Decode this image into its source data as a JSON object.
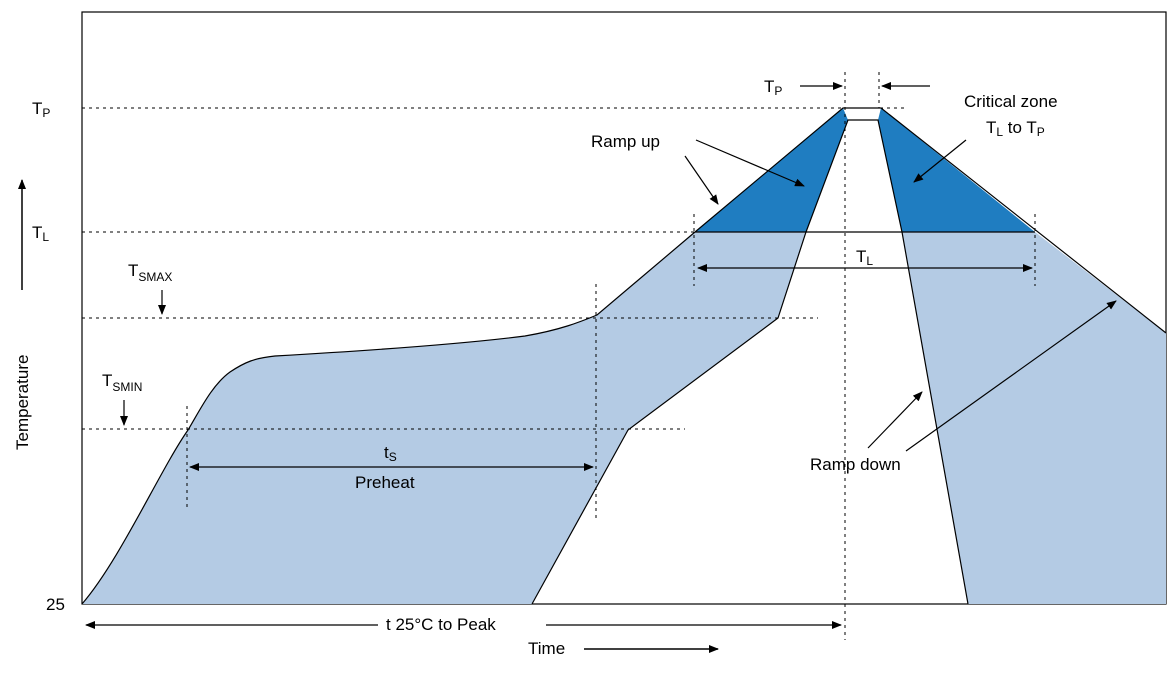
{
  "colors": {
    "light_zone": "#b4cbe4",
    "critical_zone": "#1f7dc1",
    "outline": "#000000"
  },
  "axes": {
    "y_label": "Temperature",
    "x_label": "Time",
    "y_origin_label": "25"
  },
  "levels": {
    "tp": {
      "main": "T",
      "sub": "P"
    },
    "tl": {
      "main": "T",
      "sub": "L"
    },
    "tsmax": {
      "main": "T",
      "sub": "SMAX"
    },
    "tsmin": {
      "main": "T",
      "sub": "SMIN"
    }
  },
  "annotations": {
    "tp_time": {
      "main": "T",
      "sub": "P"
    },
    "critical_zone_line1": "Critical zone",
    "critical_zone_line2": {
      "t1": "T",
      "s1": "L",
      "mid": " to T",
      "s2": "P"
    },
    "ramp_up": "Ramp up",
    "ramp_down": "Ramp down",
    "tl_time": {
      "main": "T",
      "sub": "L"
    },
    "ts_time": {
      "main": "t",
      "sub": "S"
    },
    "preheat": "Preheat",
    "total_time": "t 25°C to Peak"
  }
}
